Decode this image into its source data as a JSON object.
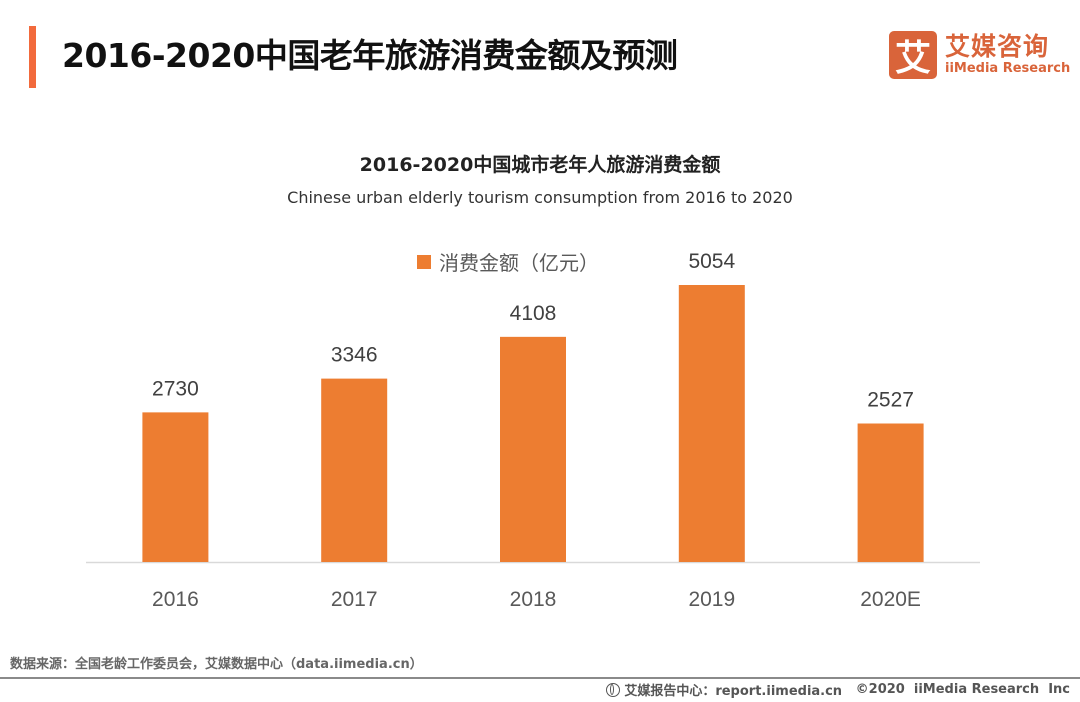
{
  "header": {
    "title": "2016-2020中国老年旅游消费金额及预测",
    "accent_color": "#f26a3c"
  },
  "logo": {
    "mark": "艾",
    "name_cn": "艾媒咨询",
    "name_en": "iiMedia Research",
    "color": "#d9643a"
  },
  "chart_data": {
    "type": "bar",
    "title": "2016-2020中国城市老年人旅游消费金额",
    "subtitle": "Chinese urban elderly tourism consumption from 2016 to 2020",
    "categories": [
      "2016",
      "2017",
      "2018",
      "2019",
      "2020E"
    ],
    "series": [
      {
        "name": "消费金额（亿元）",
        "values": [
          2730,
          3346,
          4108,
          5054,
          2527
        ],
        "color": "#ed7d31"
      }
    ],
    "xlabel": "",
    "ylabel": "",
    "ylim": [
      0,
      5054
    ],
    "grid": false,
    "legend_position": "top-center",
    "data_labels": true
  },
  "footer": {
    "source": "数据来源：全国老龄工作委员会，艾媒数据中心（data.iimedia.cn）",
    "report_center": "艾媒报告中心：report.iimedia.cn",
    "copyright": "©2020  iiMedia Research  Inc"
  }
}
